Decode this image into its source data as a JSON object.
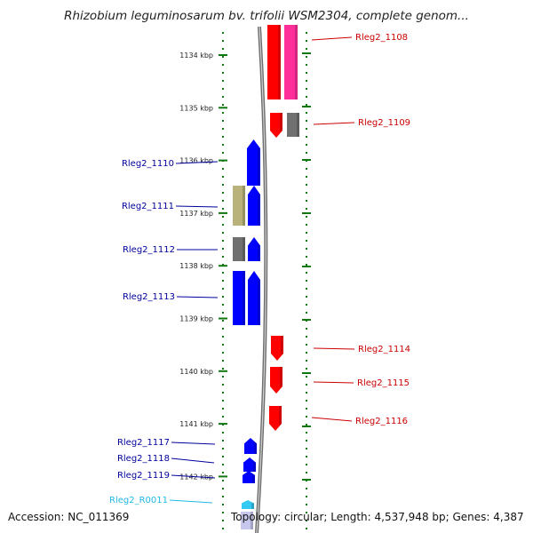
{
  "title": "Rhizobium leguminosarum bv. trifolii WSM2304, complete genom...",
  "footer": {
    "accession": "Accession: NC_011369",
    "summary": "Topology: circular; Length: 4,537,948 bp; Genes: 4,387"
  },
  "colors": {
    "forward_gene": "#ff0000",
    "forward_gene_overlap": "#ff2f9a",
    "reverse_gene": "#0000ff",
    "pseudo_gene": "#707070",
    "other_gene": "#b9b27a",
    "rna_gene": "#33c9f2",
    "forward_label": "#cc0000",
    "reverse_label": "#00009c",
    "rna_label": "#22b8e6",
    "scale_ticks": "#117711",
    "backbone": "#7d7d7d"
  },
  "scale": {
    "ticks": [
      {
        "label": "1134 kbp",
        "kbp": 1134
      },
      {
        "label": "1135 kbp",
        "kbp": 1135
      },
      {
        "label": "1136 kbp",
        "kbp": 1136
      },
      {
        "label": "1137 kbp",
        "kbp": 1137
      },
      {
        "label": "1138 kbp",
        "kbp": 1138
      },
      {
        "label": "1139 kbp",
        "kbp": 1139
      },
      {
        "label": "1140 kbp",
        "kbp": 1140
      },
      {
        "label": "1141 kbp",
        "kbp": 1141
      },
      {
        "label": "1142 kbp",
        "kbp": 1142
      }
    ]
  },
  "genes": {
    "forward": [
      {
        "label": "Rleg2_1108"
      },
      {
        "label": "Rleg2_1109"
      },
      {
        "label": "Rleg2_1114"
      },
      {
        "label": "Rleg2_1115"
      },
      {
        "label": "Rleg2_1116"
      }
    ],
    "reverse": [
      {
        "label": "Rleg2_1110"
      },
      {
        "label": "Rleg2_1111"
      },
      {
        "label": "Rleg2_1112"
      },
      {
        "label": "Rleg2_1113"
      },
      {
        "label": "Rleg2_1117"
      },
      {
        "label": "Rleg2_1118"
      },
      {
        "label": "Rleg2_1119"
      },
      {
        "label": "Rleg2_R0011"
      }
    ]
  }
}
